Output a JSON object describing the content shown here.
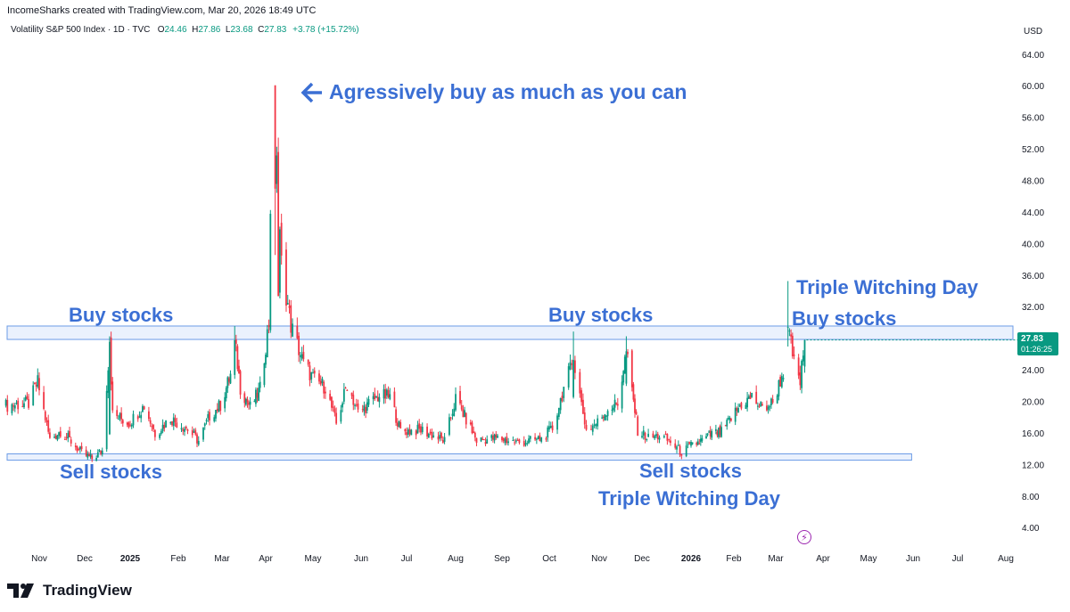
{
  "header": {
    "credit": "IncomeSharks created with TradingView.com, Mar 20, 2026 18:49 UTC",
    "symbol": "Volatility S&P 500 Index · 1D · TVC",
    "open_label": "O",
    "open": "24.46",
    "high_label": "H",
    "high": "27.86",
    "low_label": "L",
    "low": "23.68",
    "close_label": "C",
    "close": "27.83",
    "change": "+3.78 (+15.72%)"
  },
  "currency": "USD",
  "last_price": {
    "price": "27.83",
    "countdown": "01:26:25"
  },
  "annotations": {
    "buy_1": "Buy stocks",
    "buy_2": "Buy stocks",
    "buy_3": "Buy stocks",
    "sell_1": "Sell stocks",
    "sell_2": "Sell stocks",
    "tw_1": "Triple Witching Day",
    "tw_2": "Triple Witching Day",
    "aggressive": "Agressively buy as much as you can"
  },
  "footer": {
    "brand": "TradingView"
  },
  "colors": {
    "up": "#089981",
    "down": "#f23645",
    "zone_fill": "#dce8fb",
    "zone_border": "#6b9be6",
    "annotation": "#3b6fd4"
  },
  "chart_data": {
    "type": "candlestick",
    "y_ticks": [
      "64.00",
      "60.00",
      "56.00",
      "52.00",
      "48.00",
      "44.00",
      "40.00",
      "36.00",
      "32.00",
      "28.00",
      "24.00",
      "20.00",
      "16.00",
      "12.00",
      "8.00",
      "4.00"
    ],
    "ylim": [
      1.6,
      66.4
    ],
    "x_ticks": [
      {
        "label": "Nov",
        "date": "2024-11-01"
      },
      {
        "label": "Dec",
        "date": "2024-12-01"
      },
      {
        "label": "2025",
        "date": "2025-01-01"
      },
      {
        "label": "Feb",
        "date": "2025-02-01"
      },
      {
        "label": "Mar",
        "date": "2025-03-01"
      },
      {
        "label": "Apr",
        "date": "2025-04-01"
      },
      {
        "label": "May",
        "date": "2025-05-01"
      },
      {
        "label": "Jun",
        "date": "2025-06-01"
      },
      {
        "label": "Jul",
        "date": "2025-07-01"
      },
      {
        "label": "Aug",
        "date": "2025-08-01"
      },
      {
        "label": "Sep",
        "date": "2025-09-01"
      },
      {
        "label": "Oct",
        "date": "2025-10-01"
      },
      {
        "label": "Nov",
        "date": "2025-11-01"
      },
      {
        "label": "Dec",
        "date": "2025-12-01"
      },
      {
        "label": "2026",
        "date": "2026-01-01"
      },
      {
        "label": "Feb",
        "date": "2026-02-01"
      },
      {
        "label": "Mar",
        "date": "2026-03-01"
      },
      {
        "label": "Apr",
        "date": "2026-04-01"
      },
      {
        "label": "May",
        "date": "2026-05-01"
      },
      {
        "label": "Jun",
        "date": "2026-06-01"
      },
      {
        "label": "Jul",
        "date": "2026-07-01"
      },
      {
        "label": "Aug",
        "date": "2026-08-01"
      }
    ],
    "resistance_zone": {
      "low": 27.9,
      "high": 29.6
    },
    "support_zone": {
      "low": 12.6,
      "high": 13.4
    },
    "close_path": [
      [
        "2024-10-10",
        19.5
      ],
      [
        "2024-10-25",
        19.8
      ],
      [
        "2024-10-31",
        22.5
      ],
      [
        "2024-11-08",
        15.2
      ],
      [
        "2024-11-15",
        16.3
      ],
      [
        "2024-11-22",
        15.0
      ],
      [
        "2024-11-29",
        13.5
      ],
      [
        "2024-12-06",
        12.8
      ],
      [
        "2024-12-13",
        13.8
      ],
      [
        "2024-12-18",
        27.6
      ],
      [
        "2024-12-20",
        18.4
      ],
      [
        "2024-12-31",
        17.3
      ],
      [
        "2025-01-10",
        19.5
      ],
      [
        "2025-01-17",
        16.0
      ],
      [
        "2025-01-27",
        17.9
      ],
      [
        "2025-02-07",
        16.5
      ],
      [
        "2025-02-14",
        15.0
      ],
      [
        "2025-02-21",
        18.2
      ],
      [
        "2025-02-28",
        19.6
      ],
      [
        "2025-03-07",
        23.4
      ],
      [
        "2025-03-10",
        27.8
      ],
      [
        "2025-03-14",
        21.8
      ],
      [
        "2025-03-21",
        19.3
      ],
      [
        "2025-03-28",
        21.6
      ],
      [
        "2025-04-03",
        30.0
      ],
      [
        "2025-04-04",
        45.0
      ],
      [
        "2025-04-07",
        47.0
      ],
      [
        "2025-04-08",
        52.3
      ],
      [
        "2025-04-09",
        33.6
      ],
      [
        "2025-04-10",
        40.7
      ],
      [
        "2025-04-11",
        37.6
      ],
      [
        "2025-04-17",
        29.7
      ],
      [
        "2025-04-25",
        24.8
      ],
      [
        "2025-05-02",
        22.7
      ],
      [
        "2025-05-09",
        21.9
      ],
      [
        "2025-05-16",
        17.2
      ],
      [
        "2025-05-23",
        22.3
      ],
      [
        "2025-05-30",
        18.6
      ],
      [
        "2025-06-13",
        20.8
      ],
      [
        "2025-06-20",
        20.6
      ],
      [
        "2025-06-27",
        16.3
      ],
      [
        "2025-07-11",
        16.4
      ],
      [
        "2025-07-25",
        15.0
      ],
      [
        "2025-08-01",
        20.4
      ],
      [
        "2025-08-15",
        15.1
      ],
      [
        "2025-08-29",
        15.4
      ],
      [
        "2025-09-12",
        14.8
      ],
      [
        "2025-09-26",
        15.3
      ],
      [
        "2025-10-03",
        16.6
      ],
      [
        "2025-10-10",
        21.7
      ],
      [
        "2025-10-16",
        25.3
      ],
      [
        "2025-10-24",
        16.4
      ],
      [
        "2025-10-31",
        17.4
      ],
      [
        "2025-11-07",
        19.1
      ],
      [
        "2025-11-14",
        19.8
      ],
      [
        "2025-11-20",
        26.4
      ],
      [
        "2025-11-28",
        16.4
      ],
      [
        "2025-12-05",
        15.4
      ],
      [
        "2025-12-12",
        15.7
      ],
      [
        "2025-12-19",
        14.9
      ],
      [
        "2025-12-26",
        13.6
      ],
      [
        "2026-01-02",
        14.5
      ],
      [
        "2026-01-09",
        15.1
      ],
      [
        "2026-01-16",
        15.9
      ],
      [
        "2026-01-23",
        16.1
      ],
      [
        "2026-02-06",
        19.7
      ],
      [
        "2026-02-13",
        20.6
      ],
      [
        "2026-02-20",
        19.1
      ],
      [
        "2026-02-27",
        19.9
      ],
      [
        "2026-03-06",
        23.8
      ],
      [
        "2026-03-09",
        29.5
      ],
      [
        "2026-03-13",
        24.9
      ],
      [
        "2026-03-17",
        22.5
      ],
      [
        "2026-03-20",
        27.83
      ]
    ],
    "spikes": [
      {
        "date": "2024-12-18",
        "open": 15.9,
        "high": 28.3,
        "low": 15.8,
        "close": 27.6
      },
      {
        "date": "2025-03-10",
        "open": 23.4,
        "high": 29.6,
        "low": 22.9,
        "close": 27.8
      },
      {
        "date": "2025-04-07",
        "open": 60.1,
        "high": 60.1,
        "low": 38.6,
        "close": 47.0
      },
      {
        "date": "2025-10-16",
        "open": 20.6,
        "high": 28.9,
        "low": 20.4,
        "close": 25.3
      },
      {
        "date": "2025-11-20",
        "open": 22.3,
        "high": 28.3,
        "low": 22.0,
        "close": 26.4
      },
      {
        "date": "2026-03-09",
        "open": 29.5,
        "high": 35.3,
        "low": 27.0,
        "close": 29.5
      }
    ],
    "last_candle": {
      "date": "2026-03-20",
      "open": 24.46,
      "high": 27.86,
      "low": 23.68,
      "close": 27.83
    }
  }
}
